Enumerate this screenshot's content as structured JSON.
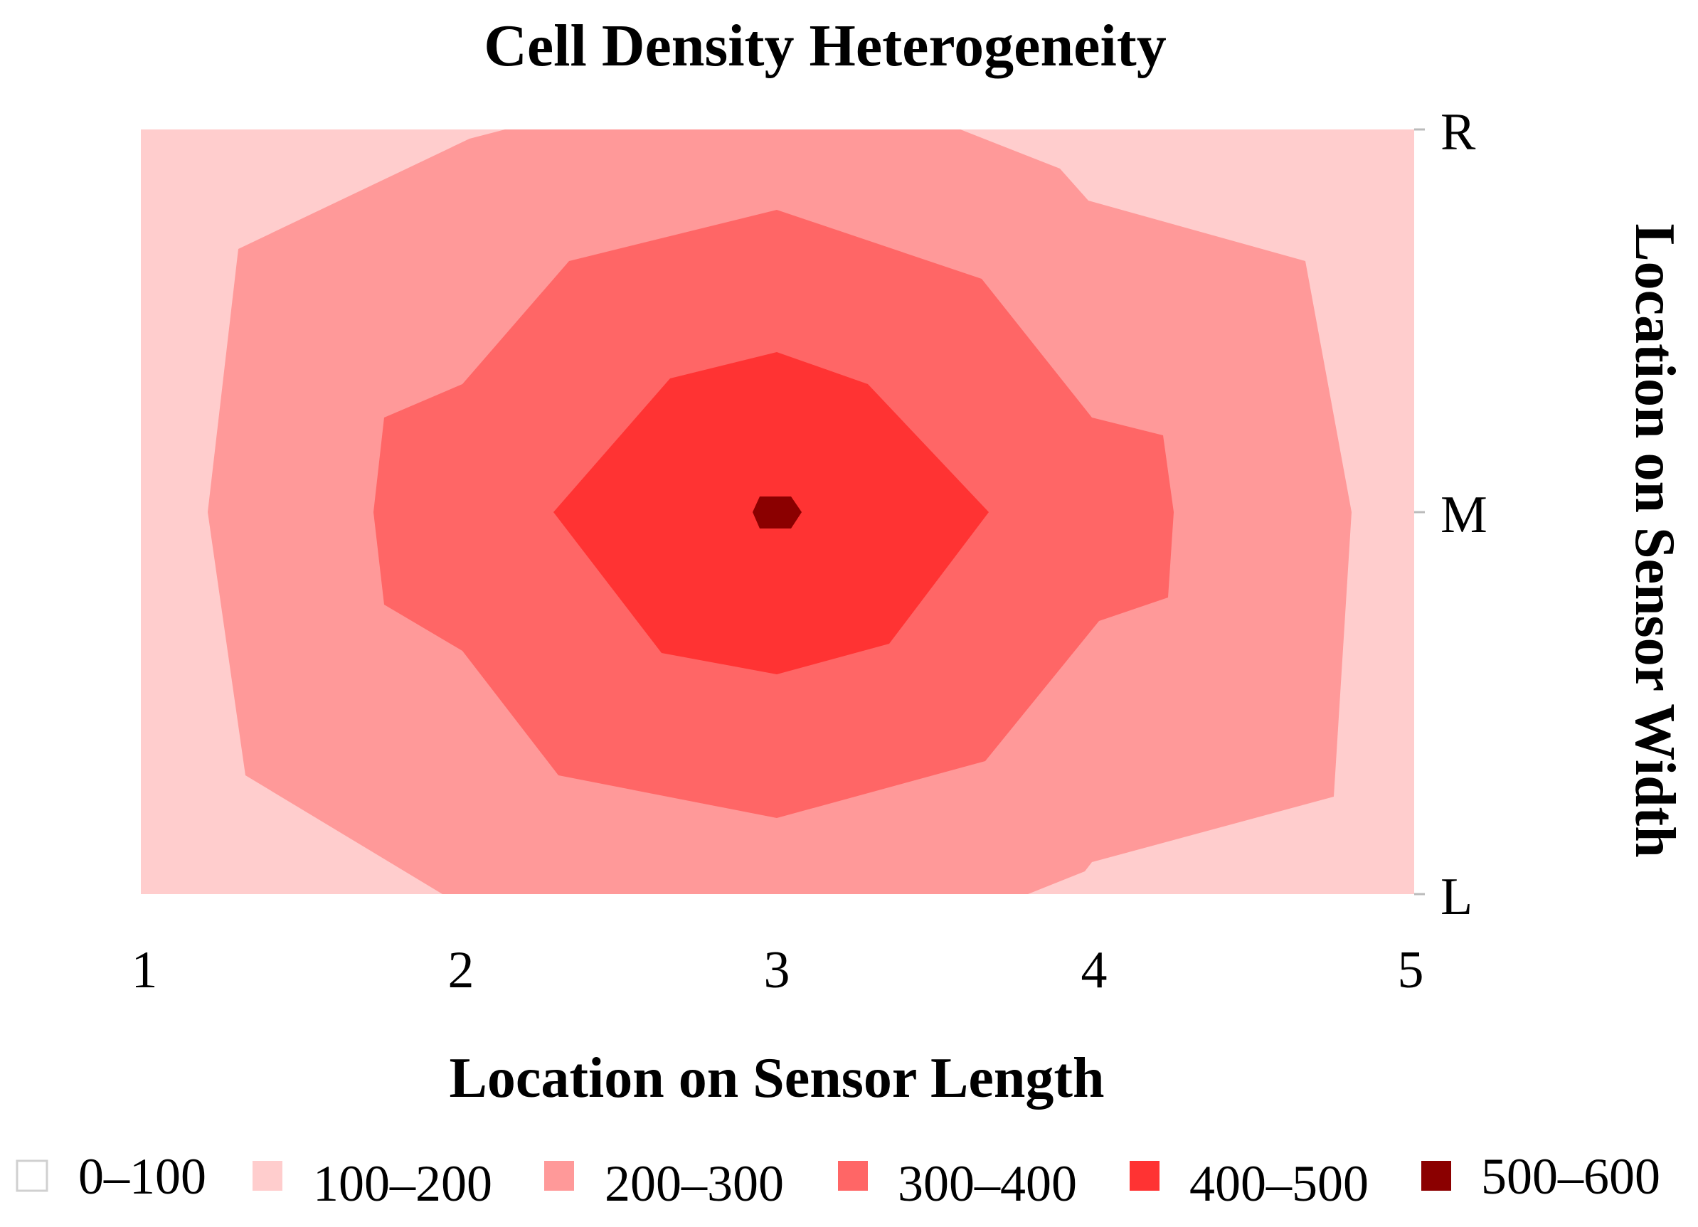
{
  "chart_data": {
    "type": "contour",
    "title": "Cell Density Heterogeneity",
    "xlabel": "Location on Sensor Length",
    "ylabel": "Location on Sensor Width",
    "x_ticks": [
      "1",
      "2",
      "3",
      "4",
      "5"
    ],
    "y_ticks": [
      "R",
      "M",
      "L"
    ],
    "xlim": [
      1,
      5
    ],
    "levels": [
      {
        "label": "0–100",
        "min": 0,
        "max": 100,
        "color": "#ffffff"
      },
      {
        "label": "100–200",
        "min": 100,
        "max": 200,
        "color": "#ffcdcd"
      },
      {
        "label": "200–300",
        "min": 200,
        "max": 300,
        "color": "#ff9999"
      },
      {
        "label": "300–400",
        "min": 300,
        "max": 400,
        "color": "#ff6666"
      },
      {
        "label": "400–500",
        "min": 400,
        "max": 500,
        "color": "#ff3333"
      },
      {
        "label": "500–600",
        "min": 500,
        "max": 600,
        "color": "#8b0000"
      }
    ],
    "peak": {
      "x": 3,
      "y": "M",
      "level": "500–600"
    }
  }
}
